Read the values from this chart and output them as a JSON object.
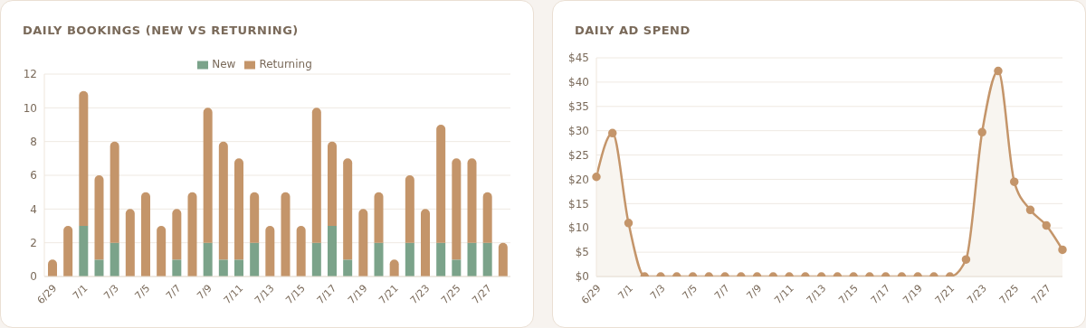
{
  "chart_data": [
    {
      "type": "bar",
      "title": "DAILY BOOKINGS (NEW VS RETURNING)",
      "stacked": true,
      "grid": "y",
      "legend": "top",
      "categories": [
        "6/29",
        null,
        "7/1",
        null,
        "7/3",
        null,
        "7/5",
        null,
        "7/7",
        null,
        "7/9",
        null,
        "7/11",
        null,
        "7/13",
        null,
        "7/15",
        null,
        "7/17",
        null,
        "7/19",
        null,
        "7/21",
        null,
        "7/23",
        null,
        "7/25",
        null,
        "7/27",
        null
      ],
      "ylim": [
        0,
        12
      ],
      "yticks": [
        0,
        2,
        4,
        6,
        8,
        10,
        12
      ],
      "series": [
        {
          "name": "New",
          "color": "#7ba38a",
          "values": [
            0,
            0,
            3,
            1,
            2,
            0,
            0,
            0,
            1,
            0,
            2,
            1,
            1,
            2,
            0,
            0,
            0,
            2,
            3,
            1,
            0,
            2,
            0,
            2,
            0,
            2,
            1,
            2,
            2,
            0
          ]
        },
        {
          "name": "Returning",
          "color": "#c4956a",
          "values": [
            1,
            3,
            8,
            5,
            6,
            4,
            5,
            3,
            3,
            5,
            8,
            7,
            6,
            3,
            3,
            5,
            3,
            8,
            5,
            6,
            4,
            3,
            1,
            4,
            4,
            7,
            6,
            5,
            3,
            2
          ]
        }
      ]
    },
    {
      "type": "area",
      "title": "DAILY AD SPEND",
      "grid": "y",
      "marker": "circle",
      "line_style": "solid",
      "categories": [
        "6/29",
        null,
        "7/1",
        null,
        "7/3",
        null,
        "7/5",
        null,
        "7/7",
        null,
        "7/9",
        null,
        "7/11",
        null,
        "7/13",
        null,
        "7/15",
        null,
        "7/17",
        null,
        "7/19",
        null,
        "7/21",
        null,
        "7/23",
        null,
        "7/25",
        null,
        "7/27",
        null
      ],
      "ylim": [
        0,
        45
      ],
      "yticks": [
        {
          "value": 0,
          "label": "$0"
        },
        {
          "value": 5,
          "label": "$5"
        },
        {
          "value": 10,
          "label": "$10"
        },
        {
          "value": 15,
          "label": "$15"
        },
        {
          "value": 20,
          "label": "$20"
        },
        {
          "value": 25,
          "label": "$25"
        },
        {
          "value": 30,
          "label": "$30"
        },
        {
          "value": 35,
          "label": "$35"
        },
        {
          "value": 40,
          "label": "$40"
        },
        {
          "value": 45,
          "label": "$45"
        }
      ],
      "series": [
        {
          "color": "#c4956a",
          "values": [
            20.5,
            29.5,
            11,
            0,
            0,
            0,
            0,
            0,
            0,
            0,
            0,
            0,
            0,
            0,
            0,
            0,
            0,
            0,
            0,
            0,
            0,
            0,
            0,
            3.5,
            29.7,
            42.3,
            19.5,
            13.7,
            10.5,
            5.5
          ]
        }
      ]
    }
  ]
}
